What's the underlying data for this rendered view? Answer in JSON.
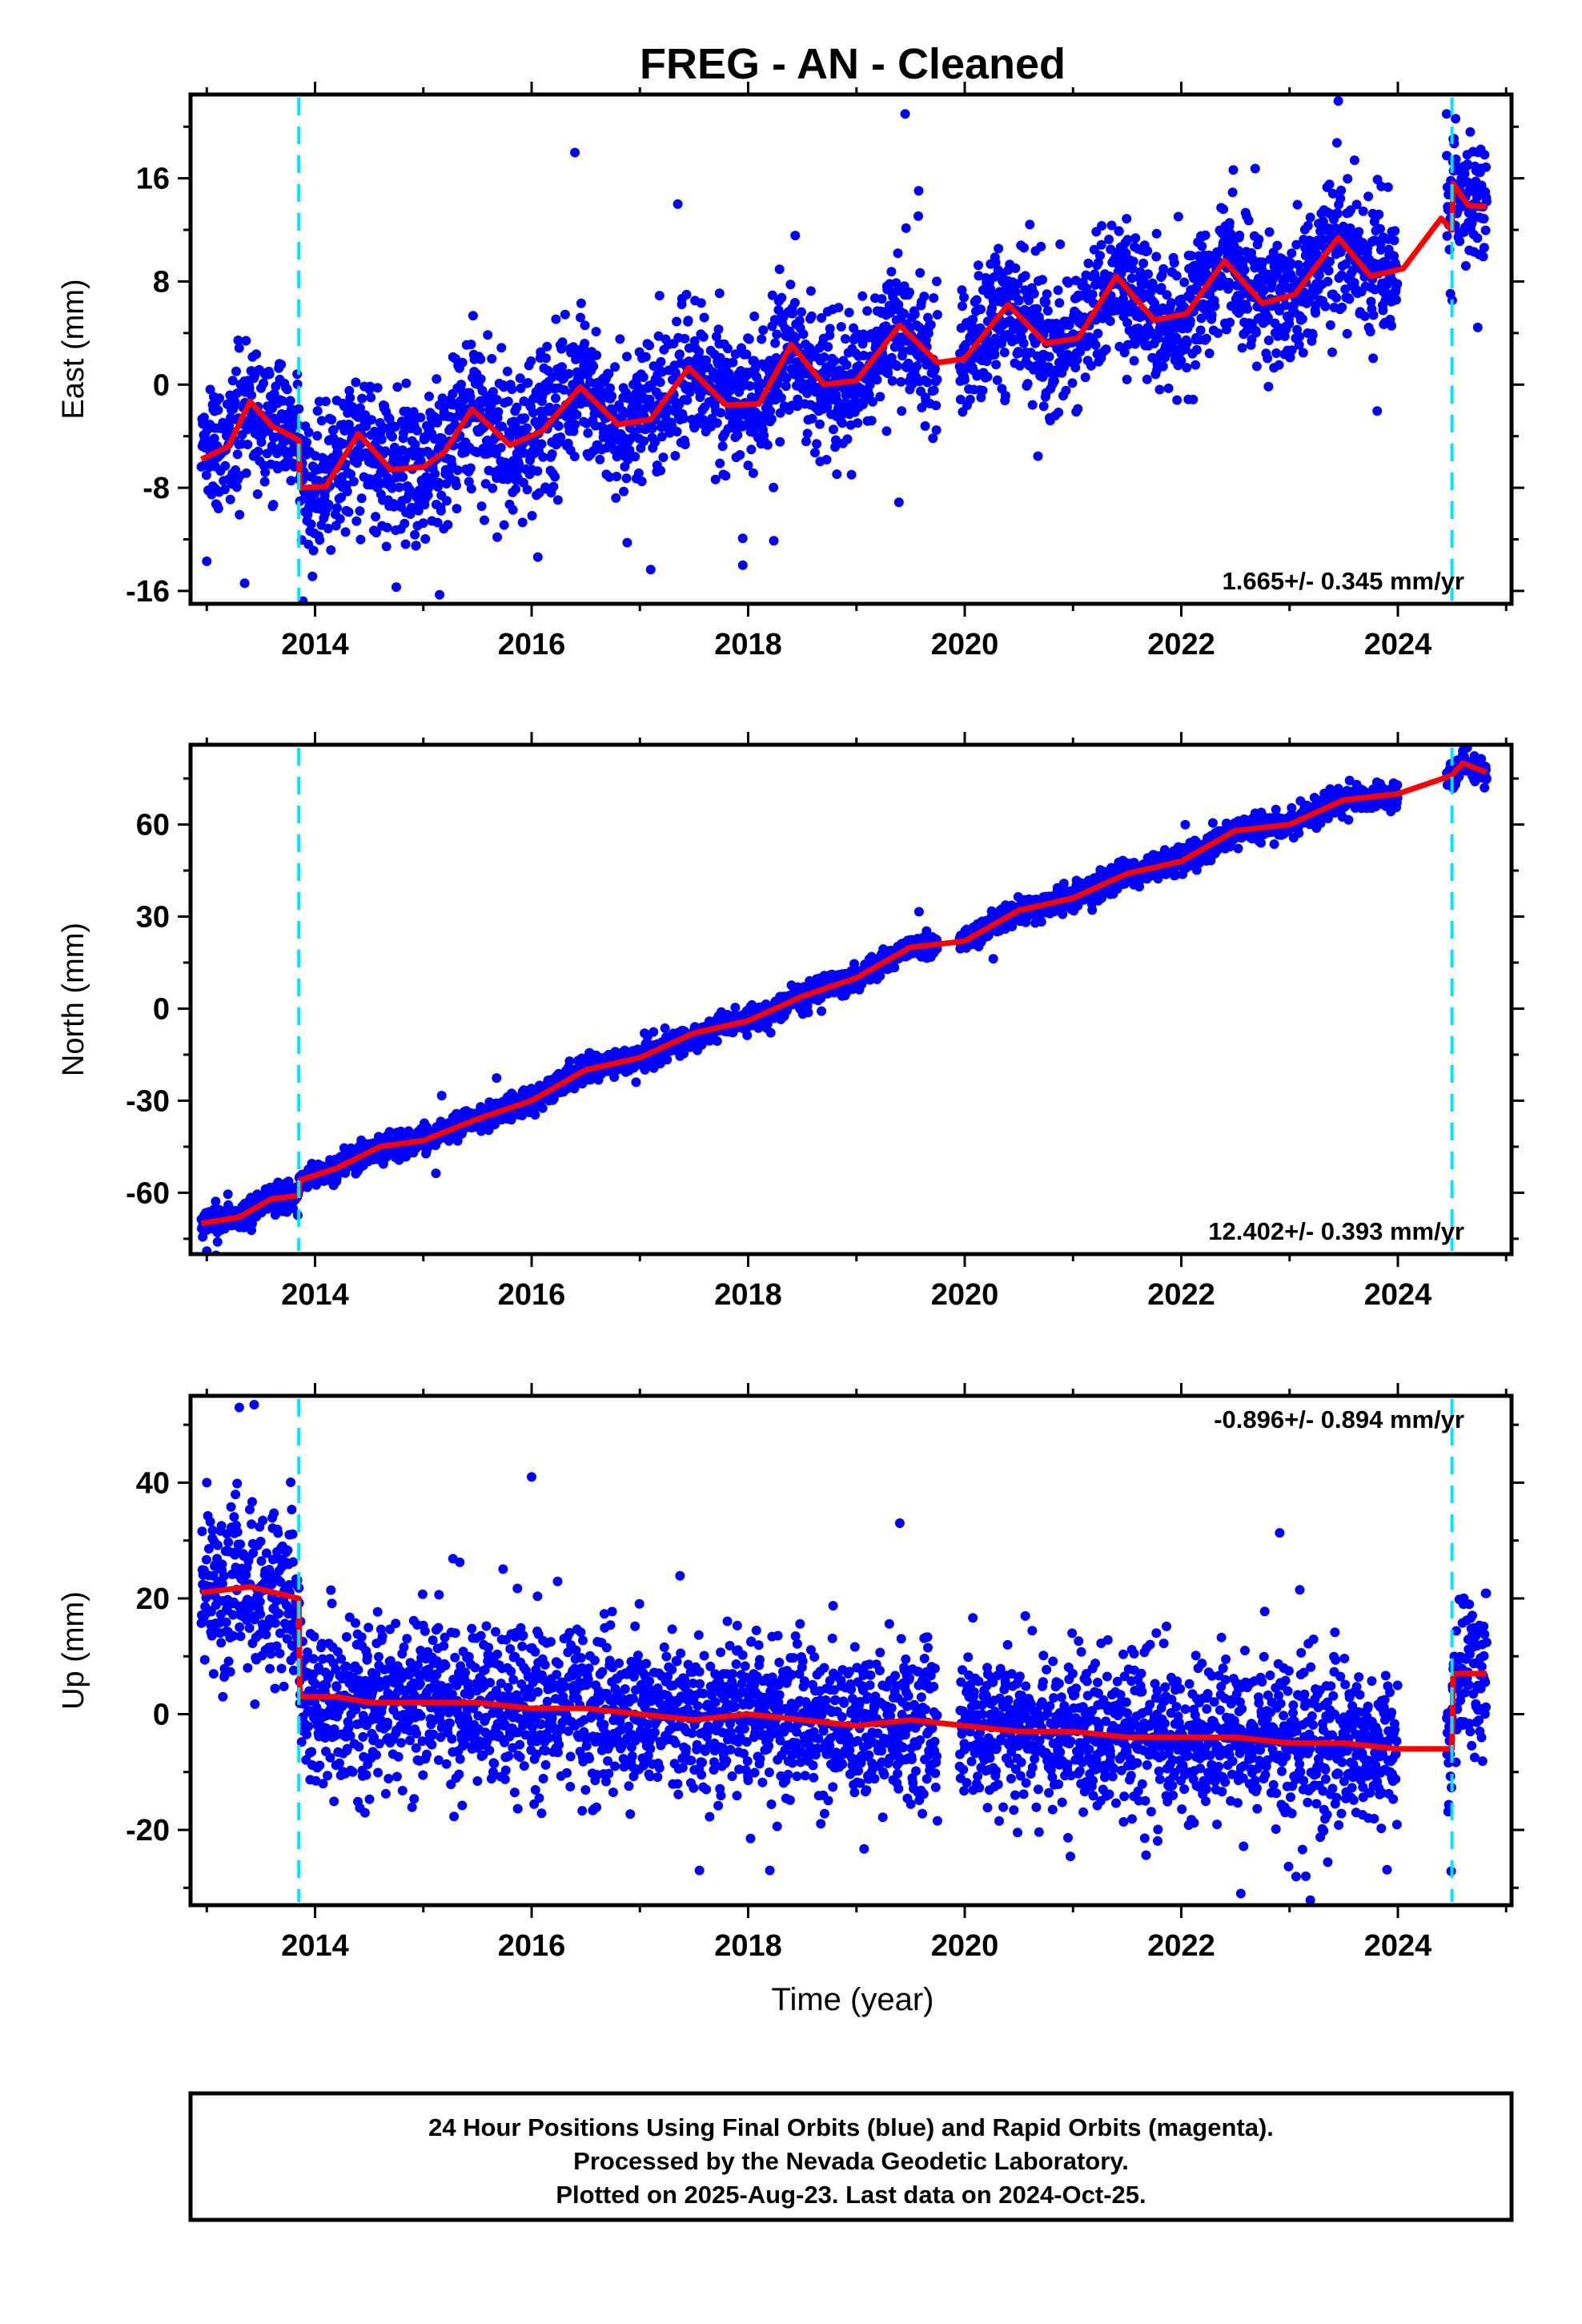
{
  "title": "FREG  - AN - Cleaned",
  "colors": {
    "points": "#0000ff",
    "fit": "#ff0000",
    "breaks": "#00e5ff"
  },
  "chart_data": [
    {
      "type": "scatter",
      "component": "east",
      "ylabel": "East (mm)",
      "xlim": [
        2012.85,
        2025.05
      ],
      "ylim": [
        -17,
        22.5
      ],
      "xticks": [
        2014,
        2016,
        2018,
        2020,
        2022,
        2024
      ],
      "yticks": [
        -16,
        -8,
        0,
        8,
        16
      ],
      "rate_text": "1.665+/- 0.345 mm/yr",
      "rate_position": "bottom-right",
      "breaks": [
        2013.85,
        2024.5
      ],
      "data_start": 2012.95,
      "data_gap": [
        2019.75,
        2019.95
      ],
      "data_gap2": [
        2024.0,
        2024.45
      ],
      "data_end": 2024.82,
      "trend": {
        "slope": 1.665,
        "t0": 2019.0,
        "offset": 0.0,
        "annual_amp": 3.0,
        "annual_phase": 2013.1,
        "scatter": 2.6
      },
      "steps": [
        {
          "at": 2013.85,
          "offset": -3.6
        },
        {
          "at": 2024.5,
          "offset": 2.9
        }
      ],
      "fit_nodes": [
        [
          2012.95,
          -5.8
        ],
        [
          2013.2,
          -4.8
        ],
        [
          2013.4,
          -1.3
        ],
        [
          2013.6,
          -3.2
        ],
        [
          2013.85,
          -4.3
        ],
        [
          2013.86,
          -8.0
        ],
        [
          2014.1,
          -7.9
        ],
        [
          2014.4,
          -3.8
        ],
        [
          2014.7,
          -6.6
        ],
        [
          2015.0,
          -6.4
        ],
        [
          2015.2,
          -5.2
        ],
        [
          2015.45,
          -1.9
        ],
        [
          2015.8,
          -4.7
        ],
        [
          2016.1,
          -3.6
        ],
        [
          2016.45,
          -0.2
        ],
        [
          2016.8,
          -3.1
        ],
        [
          2017.1,
          -2.7
        ],
        [
          2017.45,
          1.3
        ],
        [
          2017.8,
          -1.6
        ],
        [
          2018.1,
          -1.5
        ],
        [
          2018.4,
          3.1
        ],
        [
          2018.7,
          0.0
        ],
        [
          2019.0,
          0.3
        ],
        [
          2019.4,
          4.6
        ],
        [
          2019.75,
          1.7
        ],
        [
          2020.0,
          2.0
        ],
        [
          2020.4,
          6.2
        ],
        [
          2020.75,
          3.2
        ],
        [
          2021.05,
          3.6
        ],
        [
          2021.4,
          8.4
        ],
        [
          2021.75,
          5.0
        ],
        [
          2022.05,
          5.5
        ],
        [
          2022.4,
          9.6
        ],
        [
          2022.75,
          6.3
        ],
        [
          2023.05,
          7.0
        ],
        [
          2023.45,
          11.4
        ],
        [
          2023.75,
          8.4
        ],
        [
          2024.05,
          9.0
        ],
        [
          2024.4,
          12.9
        ],
        [
          2024.5,
          12.0
        ],
        [
          2024.51,
          15.6
        ],
        [
          2024.65,
          13.9
        ],
        [
          2024.82,
          13.8
        ]
      ],
      "notable_points": [
        [
          2013.0,
          -13.7
        ],
        [
          2013.35,
          -15.4
        ],
        [
          2014.75,
          -15.7
        ],
        [
          2015.15,
          -16.3
        ],
        [
          2016.4,
          18.0
        ],
        [
          2017.35,
          14.0
        ],
        [
          2019.45,
          21.0
        ],
        [
          2023.45,
          22.0
        ],
        [
          2024.45,
          21.0
        ],
        [
          2017.95,
          -14.0
        ],
        [
          2023.6,
          17.4
        ]
      ]
    },
    {
      "type": "scatter",
      "component": "north",
      "ylabel": "North (mm)",
      "xlim": [
        2012.85,
        2025.05
      ],
      "ylim": [
        -80,
        86
      ],
      "xticks": [
        2014,
        2016,
        2018,
        2020,
        2022,
        2024
      ],
      "yticks": [
        -60,
        -30,
        0,
        30,
        60
      ],
      "rate_text": "12.402+/- 0.393 mm/yr",
      "rate_position": "bottom-right",
      "breaks": [
        2013.85,
        2024.5
      ],
      "data_start": 2012.95,
      "data_gap": [
        2019.75,
        2019.95
      ],
      "data_gap2": [
        2024.0,
        2024.45
      ],
      "data_end": 2024.82,
      "trend": {
        "slope": 12.402,
        "t0": 2018.45,
        "offset": 0.0,
        "annual_amp": 2.5,
        "annual_phase": 2013.2,
        "scatter": 2.0
      },
      "steps": [],
      "fit_nodes": [
        [
          2012.95,
          -70
        ],
        [
          2013.3,
          -68
        ],
        [
          2013.6,
          -62
        ],
        [
          2013.85,
          -61
        ],
        [
          2013.86,
          -56
        ],
        [
          2014.2,
          -52
        ],
        [
          2014.6,
          -45
        ],
        [
          2015.0,
          -43
        ],
        [
          2015.5,
          -36
        ],
        [
          2016.0,
          -30
        ],
        [
          2016.5,
          -20
        ],
        [
          2017.0,
          -16
        ],
        [
          2017.5,
          -8
        ],
        [
          2018.0,
          -4
        ],
        [
          2018.5,
          4
        ],
        [
          2019.0,
          10
        ],
        [
          2019.5,
          20
        ],
        [
          2020.0,
          22
        ],
        [
          2020.5,
          32
        ],
        [
          2021.0,
          36
        ],
        [
          2021.5,
          44
        ],
        [
          2022.0,
          48
        ],
        [
          2022.5,
          58
        ],
        [
          2023.0,
          60
        ],
        [
          2023.5,
          68
        ],
        [
          2024.0,
          70
        ],
        [
          2024.5,
          76
        ],
        [
          2024.6,
          80
        ],
        [
          2024.82,
          77
        ]
      ],
      "notable_points": [
        [
          2013.0,
          -79
        ],
        [
          2013.1,
          -76
        ],
        [
          2024.6,
          84
        ],
        [
          2024.8,
          72
        ]
      ]
    },
    {
      "type": "scatter",
      "component": "up",
      "ylabel": "Up (mm)",
      "xlabel": "Time (year)",
      "xlim": [
        2012.85,
        2025.05
      ],
      "ylim": [
        -33,
        55
      ],
      "xticks": [
        2014,
        2016,
        2018,
        2020,
        2022,
        2024
      ],
      "yticks": [
        -20,
        0,
        20,
        40
      ],
      "rate_text": "-0.896+/- 0.894 mm/yr",
      "rate_position": "top-right",
      "breaks": [
        2013.85,
        2024.5
      ],
      "data_start": 2012.95,
      "data_gap": [
        2019.75,
        2019.95
      ],
      "data_gap2": [
        2024.0,
        2024.45
      ],
      "data_end": 2024.82,
      "trend": {
        "slope": -0.896,
        "t0": 2018.45,
        "offset": -1.5,
        "annual_amp": 0.8,
        "annual_phase": 2013.2,
        "scatter": 6.5
      },
      "steps": [
        {
          "at": 2013.85,
          "offset": 19.0
        },
        {
          "at": 2024.5,
          "offset": -13.0
        }
      ],
      "fit_nodes": [
        [
          2012.95,
          21
        ],
        [
          2013.4,
          22
        ],
        [
          2013.85,
          20
        ],
        [
          2013.86,
          3
        ],
        [
          2014.2,
          3
        ],
        [
          2014.5,
          2
        ],
        [
          2015.0,
          2
        ],
        [
          2015.5,
          2
        ],
        [
          2016.0,
          1
        ],
        [
          2016.5,
          1
        ],
        [
          2017.0,
          0
        ],
        [
          2017.5,
          -1
        ],
        [
          2018.0,
          0
        ],
        [
          2018.5,
          -1
        ],
        [
          2019.0,
          -2
        ],
        [
          2019.5,
          -1
        ],
        [
          2020.0,
          -2
        ],
        [
          2020.5,
          -3
        ],
        [
          2021.0,
          -3
        ],
        [
          2021.5,
          -4
        ],
        [
          2022.0,
          -4
        ],
        [
          2022.5,
          -4
        ],
        [
          2023.0,
          -5
        ],
        [
          2023.5,
          -5
        ],
        [
          2024.0,
          -6
        ],
        [
          2024.5,
          -6
        ],
        [
          2024.51,
          7
        ],
        [
          2024.82,
          7
        ]
      ],
      "notable_points": [
        [
          2013.3,
          53
        ],
        [
          2016.0,
          41
        ],
        [
          2019.4,
          33
        ],
        [
          2013.0,
          40
        ],
        [
          2017.55,
          -27
        ],
        [
          2018.2,
          -27
        ],
        [
          2022.55,
          -31
        ],
        [
          2023.15,
          -28
        ]
      ]
    }
  ],
  "footer": {
    "line1": "24 Hour Positions Using Final Orbits (blue) and Rapid Orbits (magenta).",
    "line2": "Processed by the Nevada Geodetic Laboratory.",
    "line3": "Plotted on 2025-Aug-23. Last data on 2024-Oct-25."
  }
}
